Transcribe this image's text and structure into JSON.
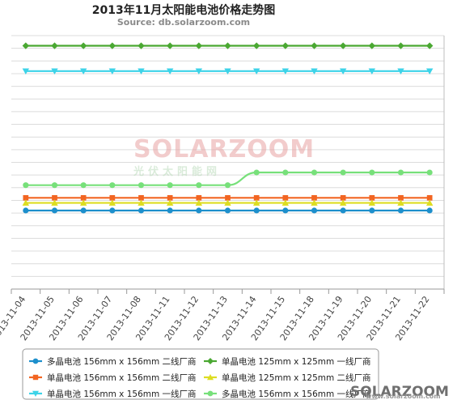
{
  "chart_data": {
    "type": "line",
    "title": "2013年11月太阳能电池价格走势图",
    "subtitle": "Source: db.solarzoom.com",
    "xlabel": "",
    "ylabel": "",
    "categories": [
      "2013-11-04",
      "2013-11-05",
      "2013-11-06",
      "2013-11-07",
      "2013-11-08",
      "2013-11-11",
      "2013-11-12",
      "2013-11-13",
      "2013-11-14",
      "2013-11-15",
      "2013-11-18",
      "2013-11-19",
      "2013-11-20",
      "2013-11-21",
      "2013-11-22"
    ],
    "grid": true,
    "legend_position": "bottom",
    "y_axis_labels_visible": false,
    "series": [
      {
        "name": "多晶电池 156mm x 156mm 二线厂商",
        "color": "#1d8fcc",
        "marker": "circle",
        "values": [
          0.31,
          0.31,
          0.31,
          0.31,
          0.31,
          0.31,
          0.31,
          0.31,
          0.31,
          0.31,
          0.31,
          0.31,
          0.31,
          0.31,
          0.31
        ]
      },
      {
        "name": "单晶电池 156mm x 156mm 二线厂商",
        "color": "#f26522",
        "marker": "square",
        "values": [
          0.36,
          0.36,
          0.36,
          0.36,
          0.36,
          0.36,
          0.36,
          0.36,
          0.36,
          0.36,
          0.36,
          0.36,
          0.36,
          0.36,
          0.36
        ]
      },
      {
        "name": "单晶电池 156mm x 156mm 一线厂商",
        "color": "#3cd3e8",
        "marker": "triangle-down",
        "values": [
          0.86,
          0.86,
          0.86,
          0.86,
          0.86,
          0.86,
          0.86,
          0.86,
          0.86,
          0.86,
          0.86,
          0.86,
          0.86,
          0.86,
          0.86
        ]
      },
      {
        "name": "单晶电池 125mm x 125mm 一线厂商",
        "color": "#4aa832",
        "marker": "diamond",
        "values": [
          0.96,
          0.96,
          0.96,
          0.96,
          0.96,
          0.96,
          0.96,
          0.96,
          0.96,
          0.96,
          0.96,
          0.96,
          0.96,
          0.96,
          0.96
        ]
      },
      {
        "name": "单晶电池 125mm x 125mm 二线厂商",
        "color": "#dddd22",
        "marker": "triangle",
        "values": [
          0.34,
          0.34,
          0.34,
          0.34,
          0.34,
          0.34,
          0.34,
          0.34,
          0.34,
          0.34,
          0.34,
          0.34,
          0.34,
          0.34,
          0.34
        ]
      },
      {
        "name": "多晶电池 156mm x 156mm 一线厂商",
        "color": "#77e07a",
        "marker": "circle",
        "values": [
          0.41,
          0.41,
          0.41,
          0.41,
          0.41,
          0.41,
          0.41,
          0.41,
          0.46,
          0.46,
          0.46,
          0.46,
          0.46,
          0.46,
          0.46
        ]
      }
    ]
  },
  "legend_order": [
    0,
    3,
    1,
    4,
    2,
    5
  ],
  "watermark": {
    "logo_text": "SOLARZOOM",
    "logo_sub": "光伏太阳能网",
    "corner_logo": "SOLARZOOM",
    "corner_url": "www.solarzoom.com"
  }
}
